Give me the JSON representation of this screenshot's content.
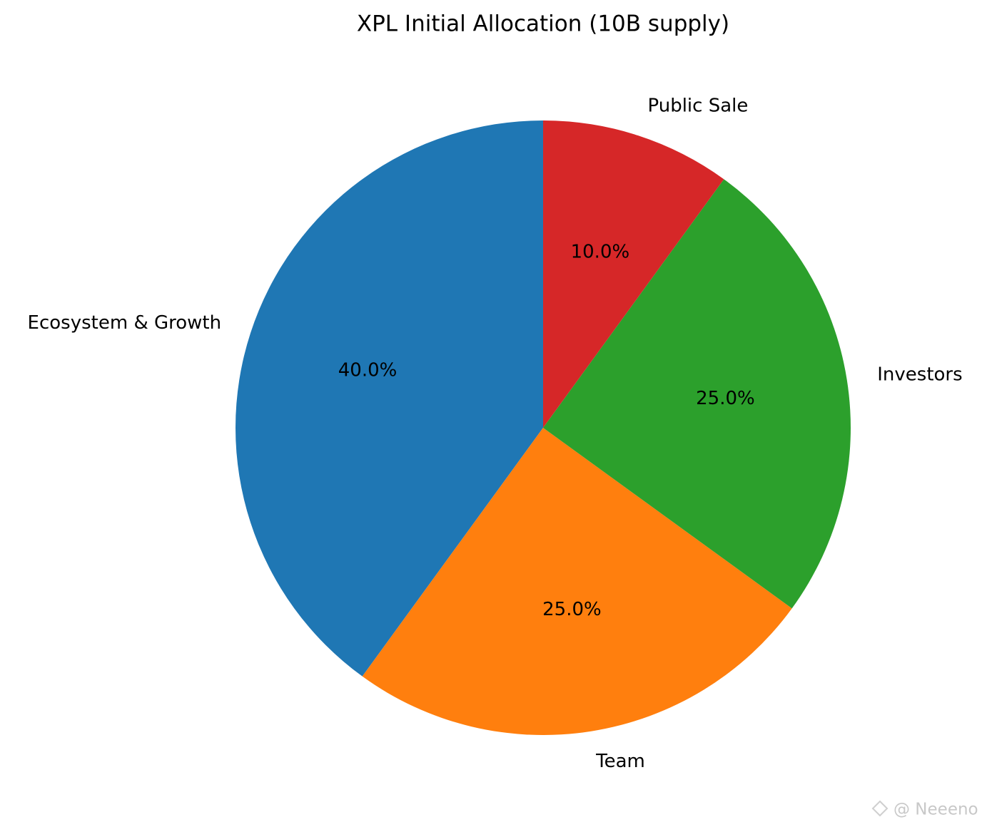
{
  "chart_data": {
    "type": "pie",
    "title": "XPL Initial Allocation (10B supply)",
    "categories": [
      "Ecosystem & Growth",
      "Team",
      "Investors",
      "Public Sale"
    ],
    "values": [
      40,
      25,
      25,
      10
    ],
    "value_labels": [
      "40.0%",
      "25.0%",
      "25.0%",
      "10.0%"
    ],
    "colors": [
      "#1f77b4",
      "#ff7f0e",
      "#2ca02c",
      "#d62728"
    ],
    "start_angle": 90,
    "counterclock": true
  },
  "watermark": "@ Neeeno"
}
